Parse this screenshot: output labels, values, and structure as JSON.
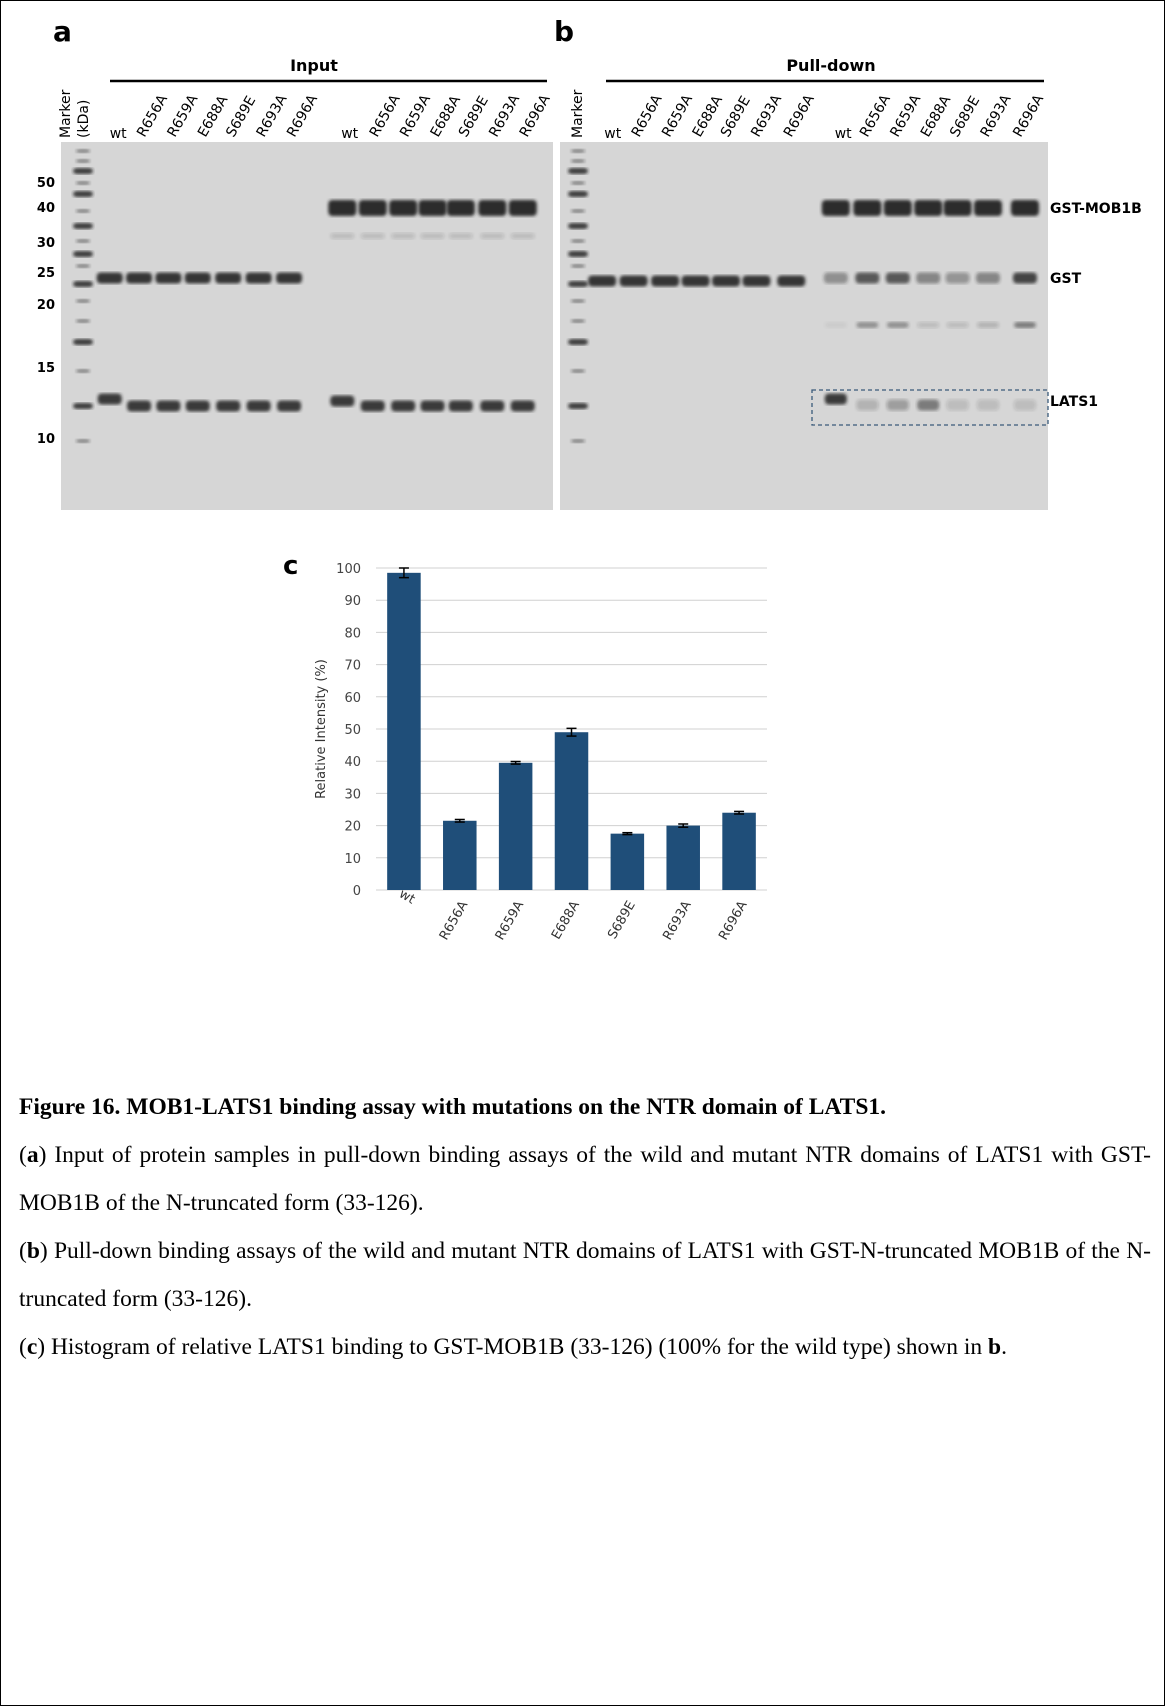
{
  "panels": {
    "a": {
      "letter": "a",
      "title": "Input",
      "marker": "Marker",
      "marker_unit": "(kDa)",
      "marker_kda": [
        50,
        40,
        30,
        25,
        20,
        15,
        10
      ],
      "lanes": [
        "wt",
        "R656A",
        "R659A",
        "E688A",
        "S689E",
        "R693A",
        "R696A",
        "wt",
        "R656A",
        "R659A",
        "E688A",
        "S689E",
        "R693A",
        "R696A"
      ]
    },
    "b": {
      "letter": "b",
      "title": "Pull-down",
      "marker": "Marker",
      "lanes": [
        "wt",
        "R656A",
        "R659A",
        "E688A",
        "S689E",
        "R693A",
        "R696A",
        "wt",
        "R656A",
        "R659A",
        "E688A",
        "S689E",
        "R693A",
        "R696A"
      ],
      "band_labels": [
        "GST-MOB1B",
        "GST",
        "LATS1"
      ]
    }
  },
  "chart_data": {
    "type": "bar",
    "panel_letter": "c",
    "y_label": "Relative Intensity (%)",
    "categories": [
      "wt",
      "R656A",
      "R659A",
      "E688A",
      "S689E",
      "R693A",
      "R696A"
    ],
    "values": [
      98.5,
      21.5,
      39.5,
      49,
      17.5,
      20,
      24
    ],
    "errors": [
      1.5,
      0.4,
      0.4,
      1.2,
      0.3,
      0.5,
      0.4
    ],
    "color": "#1f4e79",
    "ylim": [
      0,
      100
    ],
    "yticks": [
      0,
      10,
      20,
      30,
      40,
      50,
      60,
      70,
      80,
      90,
      100
    ],
    "grid": true
  },
  "caption": {
    "title": "Figure 16. MOB1-LATS1 binding assay with mutations on the NTR domain of LATS1.",
    "paragraphs": [
      [
        {
          "text": "("
        },
        {
          "bold": "a"
        },
        {
          "text": ") Input of protein samples in pull-down binding assays of the wild and mutant NTR domains of LATS1 with GST-MOB1B of the N-truncated form (33-126)."
        }
      ],
      [
        {
          "text": "("
        },
        {
          "bold": "b"
        },
        {
          "text": ") Pull-down binding assays of the wild and mutant NTR domains of LATS1 with GST-N-truncated MOB1B of the N-truncated form (33-126)."
        }
      ],
      [
        {
          "text": "("
        },
        {
          "bold": "c"
        },
        {
          "text": ") Histogram of relative LATS1 binding to GST-MOB1B (33-126) (100% for the wild type) shown in "
        },
        {
          "bold": "b"
        },
        {
          "text": "."
        }
      ]
    ]
  }
}
